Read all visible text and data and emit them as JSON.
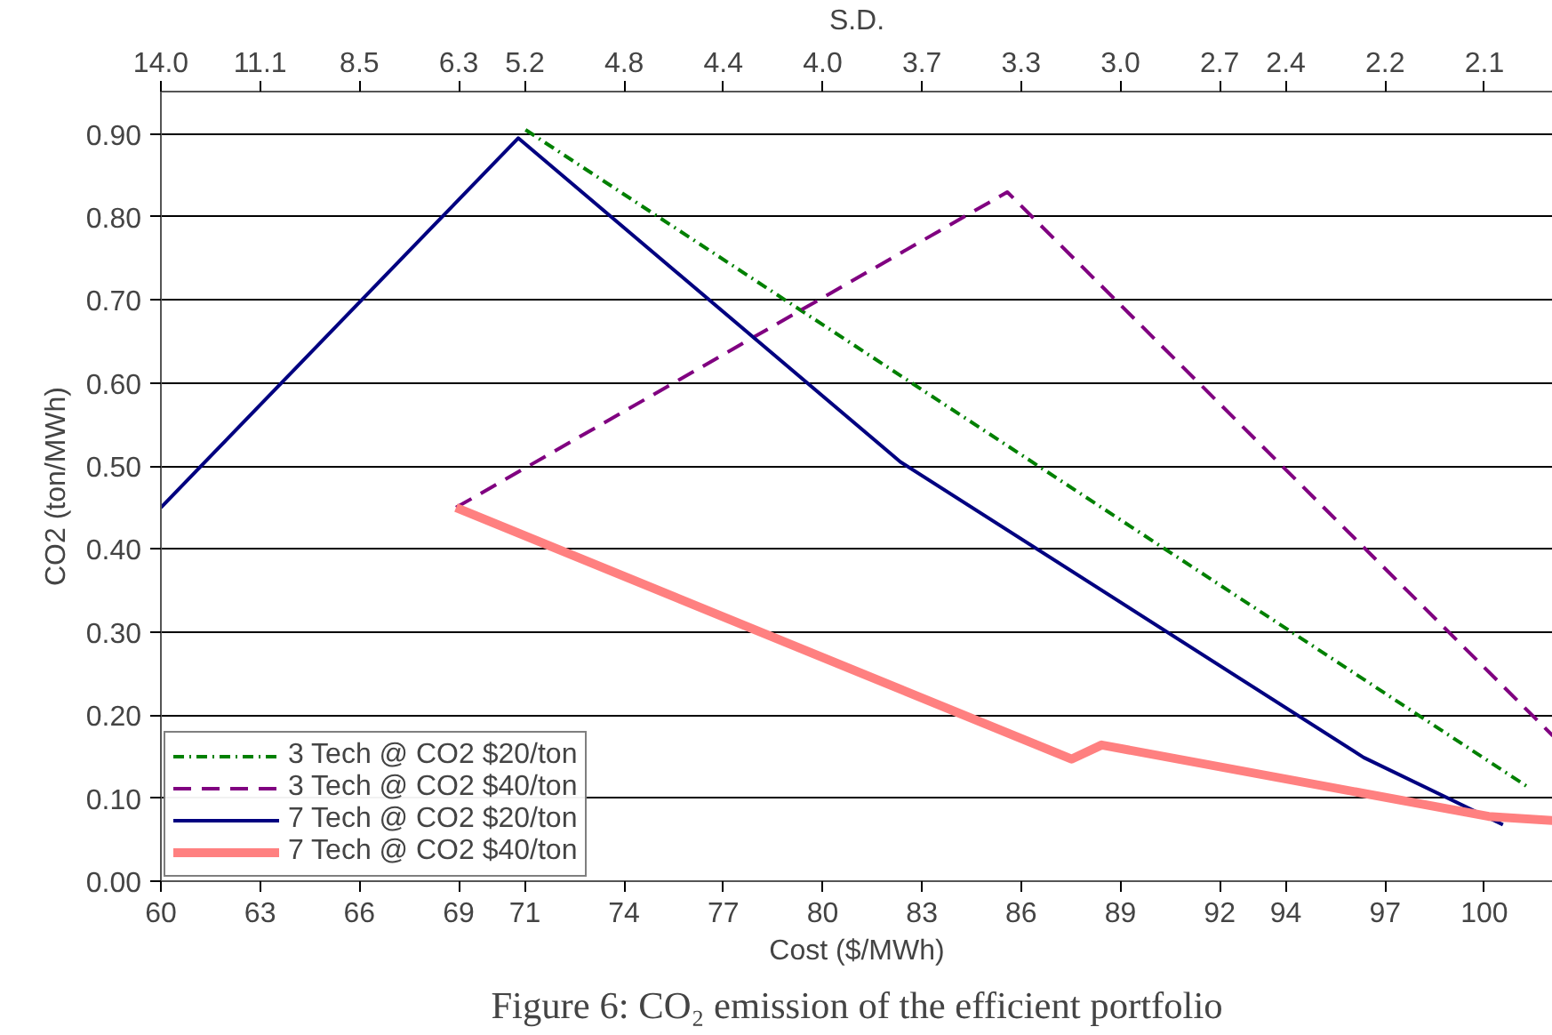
{
  "chart_data": {
    "type": "line",
    "xlabel": "Cost ($/MWh)",
    "ylabel": "CO2 (ton/MWh)",
    "x2label": "S.D.",
    "annotations": [
      "14.0",
      "11.1",
      "8.5",
      "6.3",
      "5.2",
      "4.8",
      "4.4",
      "4.0",
      "3.7",
      "3.3",
      "3.0",
      "2.7",
      "2.4",
      "2.2",
      "2.1",
      "Figure 6: CO₂ emission of the efficient portfolio"
    ],
    "xlim": [
      60,
      102.07
    ],
    "ylim": [
      0,
      0.951
    ],
    "xticks": [
      60,
      63,
      66,
      69,
      71,
      74,
      77,
      80,
      83,
      86,
      89,
      92,
      94,
      97,
      100
    ],
    "yticks": [
      {
        "value": 0,
        "label": "0.00"
      },
      {
        "value": 0.1,
        "label": "0.10"
      },
      {
        "value": 0.2,
        "label": "0.20"
      },
      {
        "value": 0.3,
        "label": "0.30"
      },
      {
        "value": 0.4,
        "label": "0.40"
      },
      {
        "value": 0.5,
        "label": "0.50"
      },
      {
        "value": 0.6,
        "label": "0.60"
      },
      {
        "value": 0.7,
        "label": "0.70"
      },
      {
        "value": 0.8,
        "label": "0.80"
      },
      {
        "value": 0.9,
        "label": "0.90"
      }
    ],
    "grid": "y",
    "legend": "bottom left",
    "marker": "none",
    "series": [
      {
        "name": "3 Tech @ CO2 $20/ton",
        "color": "#008000",
        "line_style": "dashdot",
        "x": [
          71.02,
          101.37
        ],
        "values": [
          0.905,
          0.112
        ]
      },
      {
        "name": "3 Tech @ CO2 $40/ton",
        "color": "#800080",
        "line_style": "dashed",
        "x": [
          68.92,
          85.58,
          102.07
        ],
        "values": [
          0.45,
          0.83,
          0.175
        ]
      },
      {
        "name": "7 Tech @ CO2 $20/ton",
        "color": "#000080",
        "line_style": "solid",
        "x": [
          60,
          70.8,
          82.35,
          96.35,
          100.56
        ],
        "values": [
          0.45,
          0.895,
          0.505,
          0.149,
          0.068
        ]
      },
      {
        "name": "7 Tech @ CO2 $40/ton",
        "color": "#ff8080",
        "line_style": "solid",
        "x": [
          68.92,
          87.52,
          88.43,
          100.13,
          102.07
        ],
        "values": [
          0.45,
          0.147,
          0.164,
          0.078,
          0.073
        ]
      }
    ]
  }
}
